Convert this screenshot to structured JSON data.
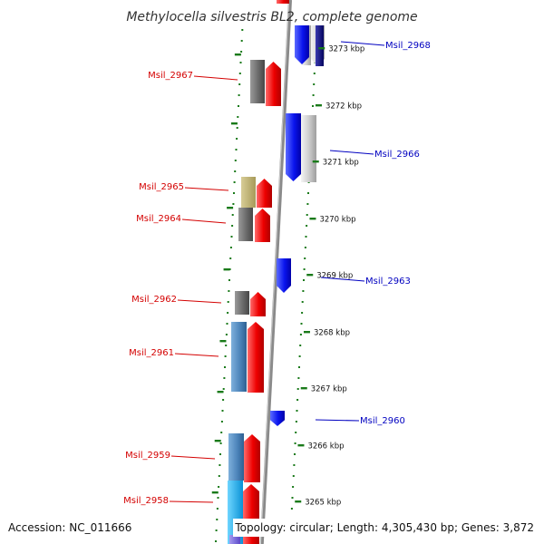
{
  "title": "Methylocella silvestris BL2, complete genome",
  "accession": "Accession: NC_011666",
  "topology": "Topology: circular; Length: 4,305,430 bp; Genes: 3,872",
  "colors": {
    "forward_label": "#d40000",
    "reverse_label": "#0000c0",
    "tick": "#1a7a1a",
    "axis": "#8a8a8a"
  },
  "ticks": [
    {
      "label": "3273 kbp"
    },
    {
      "label": "3272 kbp"
    },
    {
      "label": "3271 kbp"
    },
    {
      "label": "3270 kbp"
    },
    {
      "label": "3269 kbp"
    },
    {
      "label": "3268 kbp"
    },
    {
      "label": "3267 kbp"
    },
    {
      "label": "3266 kbp"
    },
    {
      "label": "3265 kbp"
    }
  ],
  "genes": [
    {
      "name": "Msil_2968",
      "strand": "reverse"
    },
    {
      "name": "Msil_2967",
      "strand": "forward"
    },
    {
      "name": "Msil_2966",
      "strand": "reverse"
    },
    {
      "name": "Msil_2965",
      "strand": "forward"
    },
    {
      "name": "Msil_2964",
      "strand": "forward"
    },
    {
      "name": "Msil_2963",
      "strand": "reverse"
    },
    {
      "name": "Msil_2962",
      "strand": "forward"
    },
    {
      "name": "Msil_2961",
      "strand": "forward"
    },
    {
      "name": "Msil_2960",
      "strand": "reverse"
    },
    {
      "name": "Msil_2959",
      "strand": "forward"
    },
    {
      "name": "Msil_2958",
      "strand": "forward"
    }
  ]
}
